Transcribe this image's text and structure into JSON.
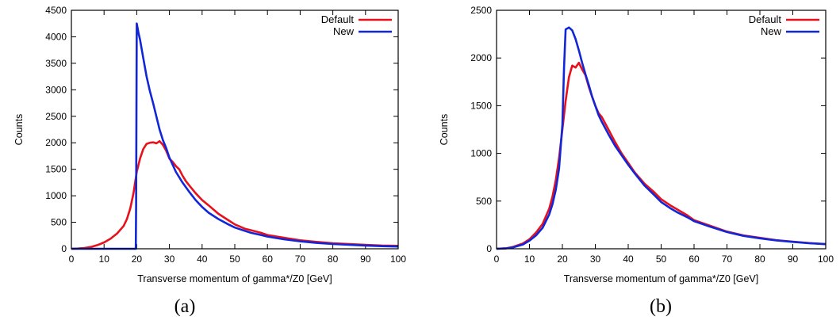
{
  "colors": {
    "default": "#e8111b",
    "new": "#1226d9",
    "frame": "#000000"
  },
  "chart_data": [
    {
      "type": "line",
      "caption": "(a)",
      "xlabel": "Transverse momentum of gamma*/Z0 [GeV]",
      "ylabel": "Counts",
      "xlim": [
        0,
        100
      ],
      "ylim": [
        0,
        4500
      ],
      "xticks": [
        0,
        10,
        20,
        30,
        40,
        50,
        60,
        70,
        80,
        90,
        100
      ],
      "yticks": [
        0,
        500,
        1000,
        1500,
        2000,
        2500,
        3000,
        3500,
        4000,
        4500
      ],
      "legend": "top-right",
      "series": [
        {
          "name": "Default",
          "color": "#e8111b",
          "points": [
            [
              0,
              0
            ],
            [
              2,
              5
            ],
            [
              4,
              15
            ],
            [
              6,
              35
            ],
            [
              8,
              70
            ],
            [
              10,
              120
            ],
            [
              12,
              190
            ],
            [
              14,
              290
            ],
            [
              16,
              430
            ],
            [
              17,
              560
            ],
            [
              18,
              760
            ],
            [
              19,
              1050
            ],
            [
              20,
              1450
            ],
            [
              21,
              1700
            ],
            [
              22,
              1880
            ],
            [
              23,
              1980
            ],
            [
              24,
              2000
            ],
            [
              25,
              2010
            ],
            [
              26,
              1990
            ],
            [
              27,
              2030
            ],
            [
              28,
              1960
            ],
            [
              29,
              1850
            ],
            [
              30,
              1700
            ],
            [
              31,
              1640
            ],
            [
              32,
              1560
            ],
            [
              33,
              1500
            ],
            [
              34,
              1380
            ],
            [
              35,
              1280
            ],
            [
              36,
              1200
            ],
            [
              38,
              1050
            ],
            [
              40,
              920
            ],
            [
              42,
              820
            ],
            [
              45,
              660
            ],
            [
              48,
              540
            ],
            [
              50,
              460
            ],
            [
              53,
              380
            ],
            [
              55,
              350
            ],
            [
              58,
              300
            ],
            [
              60,
              260
            ],
            [
              65,
              210
            ],
            [
              70,
              160
            ],
            [
              75,
              130
            ],
            [
              80,
              105
            ],
            [
              85,
              90
            ],
            [
              90,
              75
            ],
            [
              95,
              62
            ],
            [
              100,
              55
            ]
          ]
        },
        {
          "name": "New",
          "color": "#1226d9",
          "points": [
            [
              0,
              0
            ],
            [
              19.7,
              0
            ],
            [
              19.8,
              800
            ],
            [
              19.9,
              2500
            ],
            [
              20.0,
              4250
            ],
            [
              20.6,
              4050
            ],
            [
              21,
              3950
            ],
            [
              22,
              3600
            ],
            [
              23,
              3250
            ],
            [
              24,
              2980
            ],
            [
              25,
              2750
            ],
            [
              26,
              2500
            ],
            [
              27,
              2250
            ],
            [
              28,
              2050
            ],
            [
              29,
              1900
            ],
            [
              30,
              1720
            ],
            [
              32,
              1450
            ],
            [
              34,
              1250
            ],
            [
              36,
              1080
            ],
            [
              38,
              920
            ],
            [
              40,
              790
            ],
            [
              42,
              680
            ],
            [
              45,
              560
            ],
            [
              48,
              460
            ],
            [
              50,
              400
            ],
            [
              53,
              340
            ],
            [
              55,
              300
            ],
            [
              58,
              260
            ],
            [
              60,
              230
            ],
            [
              65,
              180
            ],
            [
              70,
              140
            ],
            [
              75,
              110
            ],
            [
              80,
              90
            ],
            [
              85,
              75
            ],
            [
              90,
              62
            ],
            [
              95,
              50
            ],
            [
              100,
              42
            ]
          ]
        }
      ]
    },
    {
      "type": "line",
      "caption": "(b)",
      "xlabel": "Transverse momentum of gamma*/Z0 [GeV]",
      "ylabel": "Counts",
      "xlim": [
        0,
        100
      ],
      "ylim": [
        0,
        2500
      ],
      "xticks": [
        0,
        10,
        20,
        30,
        40,
        50,
        60,
        70,
        80,
        90,
        100
      ],
      "yticks": [
        0,
        500,
        1000,
        1500,
        2000,
        2500
      ],
      "legend": "top-right",
      "series": [
        {
          "name": "Default",
          "color": "#e8111b",
          "points": [
            [
              0,
              0
            ],
            [
              3,
              5
            ],
            [
              5,
              20
            ],
            [
              8,
              55
            ],
            [
              10,
              100
            ],
            [
              12,
              170
            ],
            [
              14,
              260
            ],
            [
              16,
              420
            ],
            [
              17,
              550
            ],
            [
              18,
              720
            ],
            [
              19,
              950
            ],
            [
              20,
              1250
            ],
            [
              21,
              1550
            ],
            [
              22,
              1800
            ],
            [
              23,
              1920
            ],
            [
              24,
              1900
            ],
            [
              25,
              1950
            ],
            [
              26,
              1880
            ],
            [
              27,
              1820
            ],
            [
              28,
              1700
            ],
            [
              29,
              1600
            ],
            [
              30,
              1500
            ],
            [
              31,
              1420
            ],
            [
              32,
              1380
            ],
            [
              34,
              1250
            ],
            [
              36,
              1120
            ],
            [
              38,
              1000
            ],
            [
              40,
              900
            ],
            [
              42,
              800
            ],
            [
              45,
              680
            ],
            [
              48,
              590
            ],
            [
              50,
              520
            ],
            [
              53,
              450
            ],
            [
              55,
              410
            ],
            [
              58,
              350
            ],
            [
              60,
              300
            ],
            [
              65,
              240
            ],
            [
              70,
              180
            ],
            [
              75,
              140
            ],
            [
              80,
              115
            ],
            [
              85,
              90
            ],
            [
              90,
              75
            ],
            [
              95,
              60
            ],
            [
              100,
              50
            ]
          ]
        },
        {
          "name": "New",
          "color": "#1226d9",
          "points": [
            [
              0,
              0
            ],
            [
              3,
              5
            ],
            [
              5,
              15
            ],
            [
              8,
              45
            ],
            [
              10,
              85
            ],
            [
              12,
              140
            ],
            [
              14,
              220
            ],
            [
              16,
              360
            ],
            [
              17,
              470
            ],
            [
              18,
              620
            ],
            [
              19,
              840
            ],
            [
              20,
              1300
            ],
            [
              20.5,
              1900
            ],
            [
              21,
              2300
            ],
            [
              22,
              2320
            ],
            [
              23,
              2290
            ],
            [
              24,
              2200
            ],
            [
              25,
              2080
            ],
            [
              26,
              1950
            ],
            [
              27,
              1830
            ],
            [
              28,
              1720
            ],
            [
              29,
              1600
            ],
            [
              30,
              1500
            ],
            [
              31,
              1400
            ],
            [
              32,
              1330
            ],
            [
              34,
              1200
            ],
            [
              36,
              1080
            ],
            [
              38,
              980
            ],
            [
              40,
              880
            ],
            [
              42,
              790
            ],
            [
              45,
              660
            ],
            [
              48,
              560
            ],
            [
              50,
              490
            ],
            [
              53,
              420
            ],
            [
              55,
              380
            ],
            [
              58,
              330
            ],
            [
              60,
              290
            ],
            [
              65,
              230
            ],
            [
              70,
              175
            ],
            [
              75,
              135
            ],
            [
              80,
              110
            ],
            [
              85,
              88
            ],
            [
              90,
              72
            ],
            [
              95,
              58
            ],
            [
              100,
              48
            ]
          ]
        }
      ]
    }
  ]
}
